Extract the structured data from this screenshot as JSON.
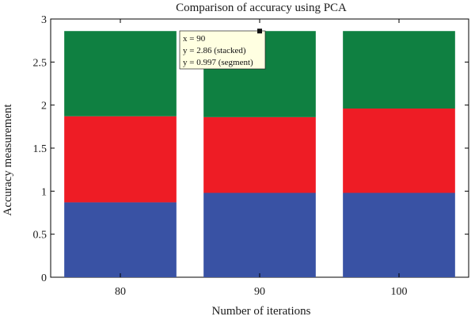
{
  "chart_data": {
    "type": "bar",
    "stacked": true,
    "title": "Comparison of accuracy using PCA",
    "xlabel": "Number of iterations",
    "ylabel": "Accuracy measurement",
    "categories": [
      "80",
      "90",
      "100"
    ],
    "ylim": [
      0,
      3
    ],
    "yticks": [
      "0",
      "0.5",
      "1",
      "1.5",
      "2",
      "2.5",
      "3"
    ],
    "grid": false,
    "legend": "none",
    "series": [
      {
        "values": [
          0.87,
          0.98,
          0.98
        ],
        "color": "#3952a4"
      },
      {
        "values": [
          1.0,
          0.88,
          0.98
        ],
        "color": "#ee1c25"
      },
      {
        "values": [
          0.99,
          1.0,
          0.9
        ],
        "color": "#0f8041"
      }
    ],
    "annotation": {
      "category": "90",
      "lines": [
        "x = 90",
        "y = 2.86 (stacked)",
        "y = 0.997 (segment)"
      ]
    }
  }
}
